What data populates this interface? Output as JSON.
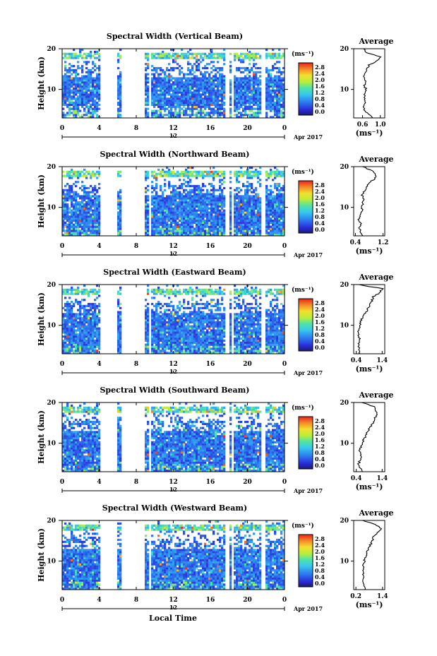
{
  "chart_data": [
    {
      "type": "heatmap",
      "title": "Spectral Width (Vertical Beam)",
      "ylabel": "Height (km)",
      "x_ticks": [
        "0",
        "4",
        "8",
        "12",
        "16",
        "20",
        "0"
      ],
      "xlim": [
        0,
        24
      ],
      "y_ticks": [
        "20",
        "10"
      ],
      "ylim": [
        3,
        20
      ],
      "date_tick": "12",
      "date_label": "Apr 2017",
      "colorbar_unit": "(ms⁻¹)",
      "colorbar_ticks": [
        "2.8",
        "2.4",
        "2.0",
        "1.6",
        "1.2",
        "0.8",
        "0.4",
        "0.0"
      ],
      "gaps_hours": [
        [
          4.1,
          5.9
        ],
        [
          6.3,
          8.9
        ],
        [
          9.3,
          9.5
        ],
        [
          17.6,
          18.0
        ],
        [
          18.3,
          18.6
        ],
        [
          21.6,
          21.9
        ]
      ],
      "average": {
        "title": "Average",
        "x_ticks": [
          "0.6",
          "1.0"
        ],
        "xlim": [
          0.4,
          1.1
        ],
        "xlabel": "(ms⁻¹)",
        "y_ticks": [
          "20",
          "10"
        ],
        "height_km": [
          3,
          4,
          5,
          6,
          7,
          8,
          9,
          10,
          11,
          12,
          13,
          14,
          15,
          16,
          17,
          18,
          19,
          20
        ],
        "width": [
          0.85,
          0.72,
          0.65,
          0.62,
          0.66,
          0.63,
          0.66,
          0.68,
          0.64,
          0.67,
          0.62,
          0.65,
          0.7,
          0.75,
          0.92,
          1.0,
          0.7,
          0.62
        ]
      }
    },
    {
      "type": "heatmap",
      "title": "Spectral Width (Northward Beam)",
      "ylabel": "Height (km)",
      "x_ticks": [
        "0",
        "4",
        "8",
        "12",
        "16",
        "20",
        "0"
      ],
      "xlim": [
        0,
        24
      ],
      "y_ticks": [
        "20",
        "10"
      ],
      "ylim": [
        3,
        20
      ],
      "date_tick": "12",
      "date_label": "Apr 2017",
      "colorbar_unit": "(ms⁻¹)",
      "colorbar_ticks": [
        "2.8",
        "2.4",
        "2.0",
        "1.6",
        "1.2",
        "0.8",
        "0.4",
        "0.0"
      ],
      "gaps_hours": [
        [
          4.1,
          5.9
        ],
        [
          6.3,
          8.9
        ],
        [
          9.3,
          9.5
        ],
        [
          17.6,
          18.0
        ],
        [
          18.3,
          18.6
        ],
        [
          21.6,
          21.9
        ]
      ],
      "average": {
        "title": "Average",
        "x_ticks": [
          "0.4",
          "1.2"
        ],
        "xlim": [
          0.35,
          1.25
        ],
        "xlabel": "(ms⁻¹)",
        "y_ticks": [
          "20",
          "10"
        ],
        "height_km": [
          3,
          4,
          5,
          6,
          7,
          8,
          9,
          10,
          11,
          12,
          13,
          14,
          15,
          16,
          17,
          18,
          19,
          20
        ],
        "width": [
          0.6,
          0.55,
          0.52,
          0.55,
          0.5,
          0.56,
          0.6,
          0.58,
          0.62,
          0.64,
          0.6,
          0.66,
          0.7,
          0.8,
          0.95,
          1.0,
          0.9,
          0.6
        ]
      }
    },
    {
      "type": "heatmap",
      "title": "Spectral Width (Eastward Beam)",
      "ylabel": "Height (km)",
      "x_ticks": [
        "0",
        "4",
        "8",
        "12",
        "16",
        "20",
        "0"
      ],
      "xlim": [
        0,
        24
      ],
      "y_ticks": [
        "20",
        "10"
      ],
      "ylim": [
        3,
        20
      ],
      "date_tick": "12",
      "date_label": "Apr 2017",
      "colorbar_unit": "(ms⁻¹)",
      "colorbar_ticks": [
        "2.8",
        "2.4",
        "2.0",
        "1.6",
        "1.2",
        "0.8",
        "0.4",
        "0.0"
      ],
      "gaps_hours": [
        [
          4.1,
          5.9
        ],
        [
          6.3,
          8.9
        ],
        [
          9.3,
          9.5
        ],
        [
          17.6,
          18.0
        ],
        [
          18.3,
          18.6
        ],
        [
          21.6,
          21.9
        ]
      ],
      "average": {
        "title": "Average",
        "x_ticks": [
          "0.4",
          "1.4"
        ],
        "xlim": [
          0.3,
          1.5
        ],
        "xlabel": "(ms⁻¹)",
        "y_ticks": [
          "20",
          "10"
        ],
        "height_km": [
          3,
          4,
          5,
          6,
          7,
          8,
          9,
          10,
          11,
          12,
          13,
          14,
          15,
          16,
          17,
          18,
          19,
          20
        ],
        "width": [
          0.55,
          0.5,
          0.48,
          0.5,
          0.52,
          0.48,
          0.5,
          0.53,
          0.58,
          0.65,
          0.75,
          0.85,
          0.9,
          1.0,
          1.05,
          1.3,
          1.4,
          0.5
        ]
      }
    },
    {
      "type": "heatmap",
      "title": "Spectral Width (Southward Beam)",
      "ylabel": "Height (km)",
      "x_ticks": [
        "0",
        "4",
        "8",
        "12",
        "16",
        "20",
        "0"
      ],
      "xlim": [
        0,
        24
      ],
      "y_ticks": [
        "20",
        "10"
      ],
      "ylim": [
        3,
        20
      ],
      "date_tick": "12",
      "date_label": "Apr 2017",
      "colorbar_unit": "(ms⁻¹)",
      "colorbar_ticks": [
        "2.8",
        "2.4",
        "2.0",
        "1.6",
        "1.2",
        "0.8",
        "0.4",
        "0.0"
      ],
      "gaps_hours": [
        [
          4.1,
          5.9
        ],
        [
          6.3,
          8.9
        ],
        [
          9.3,
          9.5
        ],
        [
          17.6,
          18.0
        ],
        [
          18.3,
          18.6
        ],
        [
          21.6,
          21.9
        ]
      ],
      "average": {
        "title": "Average",
        "x_ticks": [
          "0.4",
          "1.4"
        ],
        "xlim": [
          0.3,
          1.5
        ],
        "xlabel": "(ms⁻¹)",
        "y_ticks": [
          "20",
          "10"
        ],
        "height_km": [
          3,
          4,
          5,
          6,
          7,
          8,
          9,
          10,
          11,
          12,
          13,
          14,
          15,
          16,
          17,
          18,
          19,
          20
        ],
        "width": [
          0.6,
          0.55,
          0.5,
          0.55,
          0.6,
          0.52,
          0.58,
          0.62,
          0.7,
          0.78,
          0.85,
          0.95,
          1.05,
          1.1,
          1.2,
          1.15,
          1.1,
          0.6
        ]
      }
    },
    {
      "type": "heatmap",
      "title": "Spectral Width (Westward Beam)",
      "ylabel": "Height (km)",
      "x_ticks": [
        "0",
        "4",
        "8",
        "12",
        "16",
        "20",
        "0"
      ],
      "xlim": [
        0,
        24
      ],
      "y_ticks": [
        "20",
        "10"
      ],
      "ylim": [
        3,
        20
      ],
      "date_tick": "12",
      "date_label": "Apr 2017",
      "colorbar_unit": "(ms⁻¹)",
      "colorbar_ticks": [
        "2.8",
        "2.4",
        "2.0",
        "1.6",
        "1.2",
        "0.8",
        "0.4",
        "0.0"
      ],
      "gaps_hours": [
        [
          4.1,
          5.9
        ],
        [
          6.3,
          8.9
        ],
        [
          9.3,
          9.5
        ],
        [
          17.6,
          18.0
        ],
        [
          18.3,
          18.6
        ],
        [
          21.6,
          21.9
        ]
      ],
      "average": {
        "title": "Average",
        "x_ticks": [
          "0.2",
          "1.4"
        ],
        "xlim": [
          0.1,
          1.5
        ],
        "xlabel": "(ms⁻¹)",
        "y_ticks": [
          "20",
          "10"
        ],
        "height_km": [
          3,
          4,
          5,
          6,
          7,
          8,
          9,
          10,
          11,
          12,
          13,
          14,
          15,
          16,
          17,
          18,
          19,
          20
        ],
        "width": [
          0.6,
          0.55,
          0.5,
          0.52,
          0.55,
          0.5,
          0.55,
          0.58,
          0.62,
          0.7,
          0.78,
          0.85,
          0.95,
          1.0,
          1.2,
          1.35,
          1.1,
          0.5
        ]
      }
    }
  ],
  "footer": {
    "xlabel": "Local Time"
  }
}
